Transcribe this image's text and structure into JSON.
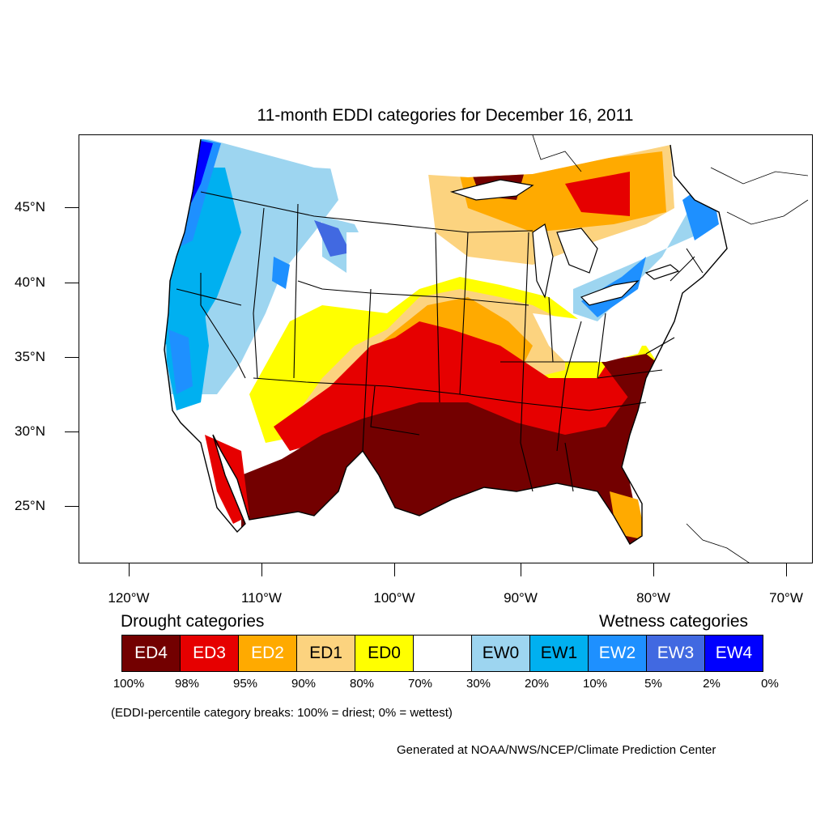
{
  "title": "11-month EDDI categories for December 16, 2011",
  "map": {
    "lat_labels": [
      "45°N",
      "40°N",
      "35°N",
      "30°N",
      "25°N"
    ],
    "lon_labels": [
      "120°W",
      "110°W",
      "100°W",
      "90°W",
      "80°W",
      "70°W"
    ]
  },
  "legend": {
    "drought_heading": "Drought categories",
    "wetness_heading": "Wetness categories",
    "categories": [
      {
        "label": "ED4",
        "color": "#730000",
        "text_color": "#ffffff"
      },
      {
        "label": "ED3",
        "color": "#e60000",
        "text_color": "#ffffff"
      },
      {
        "label": "ED2",
        "color": "#ffaa00",
        "text_color": "#ffffff"
      },
      {
        "label": "ED1",
        "color": "#fcd37f",
        "text_color": "#000000"
      },
      {
        "label": "ED0",
        "color": "#ffff00",
        "text_color": "#000000"
      },
      {
        "label": "",
        "color": "#ffffff",
        "text_color": "#000000"
      },
      {
        "label": "EW0",
        "color": "#9dd5f0",
        "text_color": "#000000"
      },
      {
        "label": "EW1",
        "color": "#00b0f0",
        "text_color": "#000000"
      },
      {
        "label": "EW2",
        "color": "#1e90ff",
        "text_color": "#ffffff"
      },
      {
        "label": "EW3",
        "color": "#4169e1",
        "text_color": "#ffffff"
      },
      {
        "label": "EW4",
        "color": "#0000ff",
        "text_color": "#ffffff"
      }
    ],
    "percent_breaks": [
      "100%",
      "98%",
      "95%",
      "90%",
      "80%",
      "70%",
      "30%",
      "20%",
      "10%",
      "5%",
      "2%",
      "0%"
    ]
  },
  "note": "(EDDI-percentile category breaks: 100% = driest; 0% = wettest)",
  "credit": "Generated at NOAA/NWS/NCEP/Climate Prediction Center"
}
